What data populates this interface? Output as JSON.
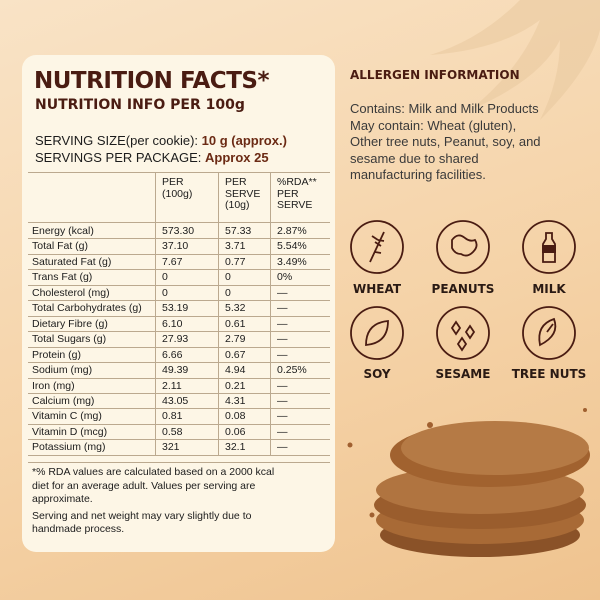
{
  "nutrition": {
    "title": "NUTRITION FACTS*",
    "subtitle": "NUTRITION INFO PER 100g",
    "serving_size": {
      "label": "SERVING SIZE(per cookie):",
      "value": "10 g (approx.)"
    },
    "servings_per_package": {
      "label": "SERVINGS PER PACKAGE:",
      "value": "Approx 25"
    },
    "table": {
      "headers": [
        [
          "PER",
          "(100g)"
        ],
        [
          "PER",
          "SERVE",
          "(10g)"
        ],
        [
          "%RDA**",
          "PER",
          "SERVE"
        ]
      ],
      "rows": [
        [
          "Energy (kcal)",
          "573.30",
          "57.33",
          "2.87%"
        ],
        [
          "Total Fat (g)",
          "37.10",
          "3.71",
          "5.54%"
        ],
        [
          "Saturated Fat (g)",
          "7.67",
          "0.77",
          "3.49%"
        ],
        [
          "Trans Fat (g)",
          "0",
          "0",
          "0%"
        ],
        [
          "Cholesterol (mg)",
          "0",
          "0",
          "—"
        ],
        [
          "Total Carbohydrates (g)",
          "53.19",
          "5.32",
          "—"
        ],
        [
          "Dietary Fibre (g)",
          "6.10",
          "0.61",
          "—"
        ],
        [
          "Total Sugars (g)",
          "27.93",
          "2.79",
          "—"
        ],
        [
          "Protein (g)",
          "6.66",
          "0.67",
          "—"
        ],
        [
          "Sodium (mg)",
          "49.39",
          "4.94",
          "0.25%"
        ],
        [
          "Iron (mg)",
          "2.11",
          "0.21",
          "—"
        ],
        [
          "Calcium (mg)",
          "43.05",
          "4.31",
          "—"
        ],
        [
          "Vitamin C (mg)",
          "0.81",
          "0.08",
          "—"
        ],
        [
          "Vitamin D (mcg)",
          "0.58",
          "0.06",
          "—"
        ],
        [
          "Potassium (mg)",
          "321",
          "32.1",
          "—"
        ]
      ]
    },
    "footnotes": [
      "*% RDA values are calculated based on a 2000 kcal",
      "diet for an average adult. Values per serving are",
      "approximate.",
      "Serving and net weight may vary slightly due to",
      "handmade process."
    ]
  },
  "allergens": {
    "title": "ALLERGEN INFORMATION",
    "text": [
      "Contains: Milk and Milk Products",
      "May contain: Wheat (gluten),",
      "Other tree nuts, Peanut, soy, and",
      "sesame due to shared",
      "manufacturing facilities."
    ],
    "items": [
      "WHEAT",
      "PEANUTS",
      "MILK",
      "SOY",
      "SESAME",
      "TREE NUTS"
    ]
  }
}
